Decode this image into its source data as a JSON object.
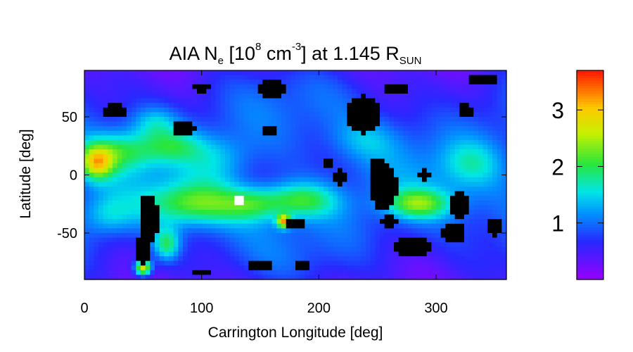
{
  "chart_data": [
    {
      "type": "heatmap",
      "title": {
        "prefix": "AIA N",
        "sub1": "e",
        "mid1": " [10",
        "sup1": "8",
        "mid2": " cm",
        "sup2": "-3",
        "mid3": "] at 1.145 R",
        "sub2": "SUN"
      },
      "xlabel": "Carrington Longitude [deg]",
      "ylabel": "Latitude [deg]",
      "xlim": [
        0,
        360
      ],
      "ylim": [
        -90,
        90
      ],
      "xticks": [
        0,
        100,
        200,
        300
      ],
      "yticks": [
        -50,
        0,
        50
      ],
      "grid": false,
      "colormap": "rainbow",
      "value_range": [
        0.0,
        3.7
      ],
      "blobs": [
        {
          "lon": 30,
          "lat": 20,
          "value": 2.0,
          "sx": 22,
          "sy": 12
        },
        {
          "lon": 10,
          "lat": 10,
          "value": 2.6,
          "sx": 10,
          "sy": 10
        },
        {
          "lon": 95,
          "lat": -25,
          "value": 2.3,
          "sx": 30,
          "sy": 13
        },
        {
          "lon": 145,
          "lat": -25,
          "value": 1.8,
          "sx": 18,
          "sy": 10
        },
        {
          "lon": 185,
          "lat": -22,
          "value": 2.2,
          "sx": 22,
          "sy": 11
        },
        {
          "lon": 285,
          "lat": -25,
          "value": 2.3,
          "sx": 20,
          "sy": 9
        },
        {
          "lon": 75,
          "lat": 25,
          "value": 1.7,
          "sx": 18,
          "sy": 10
        },
        {
          "lon": 115,
          "lat": 15,
          "value": 1.5,
          "sx": 20,
          "sy": 14
        },
        {
          "lon": 60,
          "lat": 45,
          "value": 1.6,
          "sx": 14,
          "sy": 10
        },
        {
          "lon": 330,
          "lat": 10,
          "value": 1.6,
          "sx": 18,
          "sy": 14
        },
        {
          "lon": 240,
          "lat": 30,
          "value": 1.4,
          "sx": 20,
          "sy": 12
        },
        {
          "lon": 50,
          "lat": -80,
          "value": 3.4,
          "sx": 5,
          "sy": 5
        },
        {
          "lon": 70,
          "lat": -60,
          "value": 2.2,
          "sx": 8,
          "sy": 10
        },
        {
          "lon": 170,
          "lat": -40,
          "value": 3.0,
          "sx": 4,
          "sy": 4
        },
        {
          "lon": 20,
          "lat": -35,
          "value": 1.6,
          "sx": 15,
          "sy": 12
        }
      ],
      "saturated_patches": [
        {
          "lon": 133,
          "lat": -22,
          "rlon": 4,
          "rlat": 6
        }
      ],
      "voids": [
        {
          "lon": 100,
          "lat": 75,
          "rlon": 7,
          "rlat": 5
        },
        {
          "lon": 25,
          "lat": 55,
          "rlon": 10,
          "rlat": 7
        },
        {
          "lon": 85,
          "lat": 40,
          "rlon": 9,
          "rlat": 8
        },
        {
          "lon": 160,
          "lat": 74,
          "rlon": 12,
          "rlat": 8
        },
        {
          "lon": 238,
          "lat": 52,
          "rlon": 15,
          "rlat": 16
        },
        {
          "lon": 265,
          "lat": 74,
          "rlon": 11,
          "rlat": 5
        },
        {
          "lon": 340,
          "lat": 82,
          "rlon": 14,
          "rlat": 5
        },
        {
          "lon": 325,
          "lat": 55,
          "rlon": 7,
          "rlat": 6
        },
        {
          "lon": 158,
          "lat": 38,
          "rlon": 8,
          "rlat": 4
        },
        {
          "lon": 218,
          "lat": -2,
          "rlon": 6,
          "rlat": 6
        },
        {
          "lon": 208,
          "lat": 10,
          "rlon": 4,
          "rlat": 4
        },
        {
          "lon": 255,
          "lat": -10,
          "rlon": 12,
          "rlat": 20
        },
        {
          "lon": 250,
          "lat": 5,
          "rlon": 8,
          "rlat": 10
        },
        {
          "lon": 260,
          "lat": -40,
          "rlon": 8,
          "rlat": 6
        },
        {
          "lon": 320,
          "lat": -25,
          "rlon": 8,
          "rlat": 12
        },
        {
          "lon": 315,
          "lat": -50,
          "rlon": 10,
          "rlat": 9
        },
        {
          "lon": 280,
          "lat": -62,
          "rlon": 16,
          "rlat": 10
        },
        {
          "lon": 55,
          "lat": -38,
          "rlon": 9,
          "rlat": 22
        },
        {
          "lon": 50,
          "lat": -65,
          "rlon": 8,
          "rlat": 12
        },
        {
          "lon": 180,
          "lat": -42,
          "rlon": 7,
          "rlat": 6
        },
        {
          "lon": 150,
          "lat": -78,
          "rlon": 12,
          "rlat": 5
        },
        {
          "lon": 185,
          "lat": -78,
          "rlon": 8,
          "rlat": 4
        },
        {
          "lon": 290,
          "lat": 0,
          "rlon": 7,
          "rlat": 4
        },
        {
          "lon": 350,
          "lat": -45,
          "rlon": 6,
          "rlat": 8
        },
        {
          "lon": 100,
          "lat": -85,
          "rlon": 10,
          "rlat": 3
        }
      ]
    },
    {
      "type": "colorbar",
      "colormap": "rainbow",
      "range": [
        0.0,
        3.7
      ],
      "ticks": [
        1,
        2,
        3
      ]
    }
  ]
}
